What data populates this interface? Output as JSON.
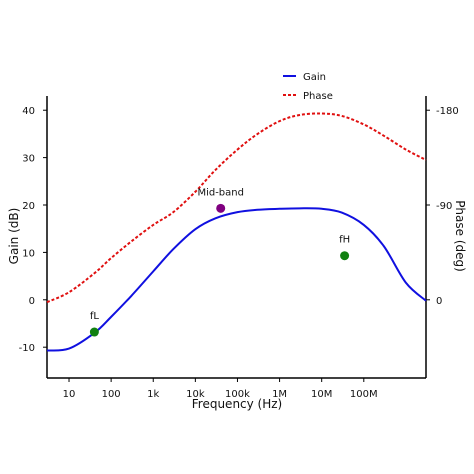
{
  "chart_data": {
    "type": "line",
    "title": "",
    "xlabel": "Frequency (Hz)",
    "ylabel": "Gain (dB)",
    "ylabel_right": "Phase (deg)",
    "x_scale": "log",
    "xlim": [
      3,
      3000000000
    ],
    "ylim": [
      -16.5,
      43
    ],
    "x_ticks": [
      {
        "value": 10,
        "label": "10"
      },
      {
        "value": 100,
        "label": "100"
      },
      {
        "value": 1000,
        "label": "1k"
      },
      {
        "value": 10000,
        "label": "10k"
      },
      {
        "value": 100000,
        "label": "100k"
      },
      {
        "value": 1000000,
        "label": "1M"
      },
      {
        "value": 10000000,
        "label": "10M"
      },
      {
        "value": 100000000,
        "label": "100M"
      }
    ],
    "y_ticks": [
      {
        "value": -10,
        "label": "-10"
      },
      {
        "value": 0,
        "label": "0"
      },
      {
        "value": 10,
        "label": "10"
      },
      {
        "value": 20,
        "label": "20"
      },
      {
        "value": 30,
        "label": "30"
      },
      {
        "value": 40,
        "label": "40"
      }
    ],
    "y_right_ticks": [
      {
        "at": 40,
        "label": "-180"
      },
      {
        "at": 20,
        "label": "-90"
      },
      {
        "at": 0,
        "label": "0"
      }
    ],
    "grid": false,
    "legend": {
      "position": "top-right",
      "entries": [
        "Gain",
        "Phase"
      ]
    },
    "series": [
      {
        "name": "Gain",
        "color": "#1010e0",
        "style": "solid",
        "x": [
          3,
          10,
          40,
          100,
          300,
          1000,
          3000,
          10000,
          30000,
          100000,
          300000,
          1000000,
          3000000,
          10000000,
          30000000,
          100000000,
          300000000,
          1000000000,
          3000000000
        ],
        "y": [
          -10.7,
          -10.3,
          -7.0,
          -3.6,
          0.8,
          6.0,
          10.7,
          14.9,
          17.2,
          18.5,
          19.0,
          19.2,
          19.3,
          19.2,
          18.4,
          15.8,
          11.3,
          3.6,
          -0.2
        ]
      },
      {
        "name": "Phase",
        "color": "#e01010",
        "style": "dashed",
        "x": [
          3,
          10,
          40,
          100,
          300,
          1000,
          3000,
          10000,
          30000,
          100000,
          300000,
          1000000,
          3000000,
          10000000,
          30000000,
          100000000,
          300000000,
          1000000000,
          3000000000
        ],
        "y": [
          -0.5,
          1.6,
          5.6,
          8.8,
          12.3,
          15.8,
          18.5,
          22.8,
          27.4,
          31.7,
          35.0,
          37.7,
          39.0,
          39.3,
          38.8,
          37.0,
          34.6,
          31.7,
          29.5
        ]
      }
    ],
    "markers": [
      {
        "label": "fL",
        "x": 40,
        "y": -6.8,
        "color": "#118011"
      },
      {
        "label": "Mid-band",
        "x": 40000,
        "y": 19.3,
        "color": "#800080"
      },
      {
        "label": "fH",
        "x": 35000000,
        "y": 9.3,
        "color": "#118011"
      }
    ]
  }
}
